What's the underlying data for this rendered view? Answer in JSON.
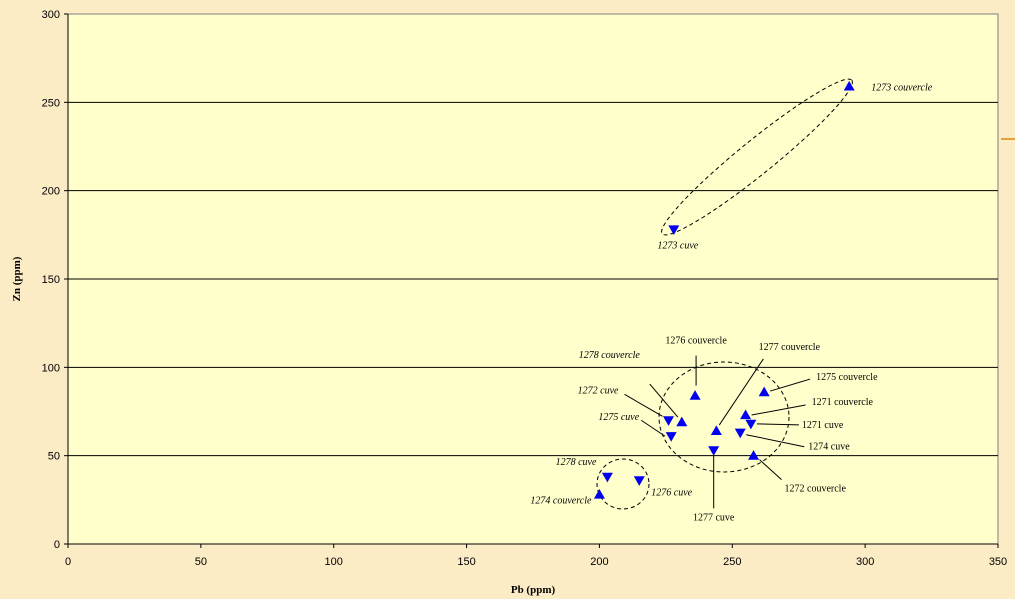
{
  "colors": {
    "background": "#fcecc6",
    "plot_area": "#ffffcc",
    "marker": "#0000ee",
    "accent_line": "#e8a23c"
  },
  "chart_data": {
    "type": "scatter",
    "xlabel": "Pb (ppm)",
    "ylabel": "Zn (ppm)",
    "xlim": [
      0,
      350
    ],
    "ylim": [
      0,
      300
    ],
    "xticks": [
      0,
      50,
      100,
      150,
      200,
      250,
      300,
      350
    ],
    "yticks": [
      0,
      50,
      100,
      150,
      200,
      250,
      300
    ],
    "grid": "horizontal major gridlines",
    "legend": "none",
    "series": [
      {
        "marker": "triangle-up",
        "points": [
          {
            "label": "1273 couvercle",
            "x": 294,
            "y": 259
          },
          {
            "label": "1276 couvercle",
            "x": 236,
            "y": 84
          },
          {
            "label": "1278 couvercle",
            "x": 231,
            "y": 69
          },
          {
            "label": "1277 couvercle",
            "x": 244,
            "y": 64
          },
          {
            "label": "1275 couvercle",
            "x": 262,
            "y": 86
          },
          {
            "label": "1271 couvercle",
            "x": 255,
            "y": 73
          },
          {
            "label": "1272 couvercle",
            "x": 258,
            "y": 50
          },
          {
            "label": "1274 couvercle",
            "x": 200,
            "y": 28
          }
        ]
      },
      {
        "marker": "triangle-down",
        "points": [
          {
            "label": "1273 cuve",
            "x": 228,
            "y": 178
          },
          {
            "label": "1272 cuve",
            "x": 226,
            "y": 70
          },
          {
            "label": "1275 cuve",
            "x": 227,
            "y": 61
          },
          {
            "label": "1277 cuve",
            "x": 243,
            "y": 53
          },
          {
            "label": "1271 cuve",
            "x": 257,
            "y": 68
          },
          {
            "label": "1274 cuve",
            "x": 253,
            "y": 63
          },
          {
            "label": "1278 cuve",
            "x": 203,
            "y": 38
          },
          {
            "label": "1276 cuve",
            "x": 215,
            "y": 36
          }
        ]
      }
    ]
  }
}
